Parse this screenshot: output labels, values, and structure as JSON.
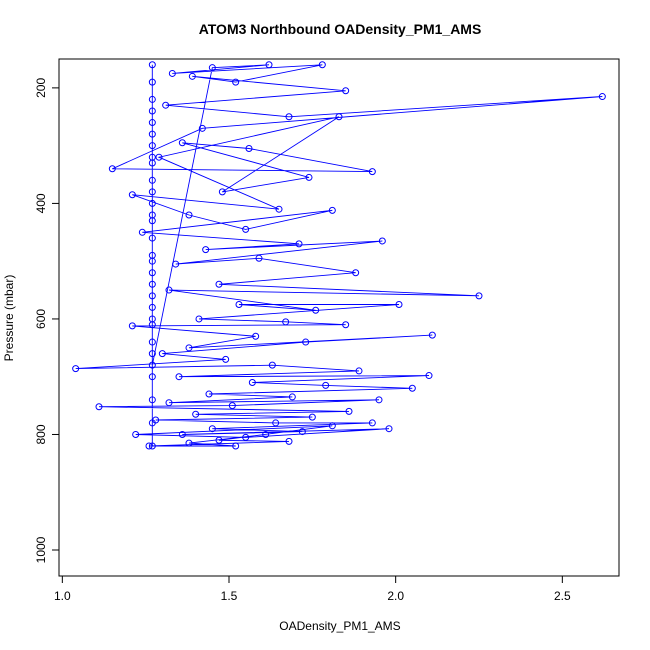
{
  "chart_data": {
    "type": "line",
    "title": "ATOM3 Northbound OADensity_PM1_AMS",
    "xlabel": "OADensity_PM1_AMS",
    "ylabel": "Pressure (mbar)",
    "xlim": [
      0.99,
      2.67
    ],
    "ylim": [
      1045,
      150
    ],
    "y_reversed": true,
    "x_ticks": [
      "1.0",
      "1.5",
      "2.0",
      "2.5"
    ],
    "x_tick_values": [
      1.0,
      1.5,
      2.0,
      2.5
    ],
    "y_ticks": [
      "200",
      "400",
      "600",
      "800",
      "1000"
    ],
    "y_tick_values": [
      200,
      400,
      600,
      800,
      1000
    ],
    "grid": false,
    "series": [
      {
        "color": "#0000ff",
        "marker": "open-circle",
        "x": [
          1.27,
          1.27,
          1.27,
          1.27,
          1.27,
          1.27,
          1.27,
          1.27,
          1.27,
          1.27,
          1.27,
          1.27,
          1.27,
          1.27,
          1.27,
          1.27,
          1.27,
          1.27,
          1.27,
          1.27,
          1.27,
          1.27,
          1.27,
          1.27,
          1.27,
          1.27,
          1.27,
          1.27,
          1.27,
          1.27,
          1.45,
          1.62,
          1.33,
          1.78,
          1.52,
          1.39,
          1.85,
          1.31,
          1.68,
          2.62,
          1.42,
          1.15,
          1.93,
          1.56,
          1.36,
          1.74,
          1.48,
          1.83,
          1.29,
          1.65,
          1.21,
          1.38,
          1.55,
          1.81,
          1.24,
          1.71,
          1.43,
          1.96,
          1.34,
          1.59,
          1.88,
          1.47,
          2.25,
          1.32,
          1.76,
          1.53,
          2.01,
          1.41,
          1.67,
          1.85,
          1.21,
          1.58,
          1.38,
          2.11,
          1.73,
          1.3,
          1.49,
          1.04,
          1.63,
          1.89,
          1.35,
          2.1,
          1.57,
          1.79,
          2.05,
          1.44,
          1.69,
          1.32,
          1.95,
          1.51,
          1.11,
          1.86,
          1.4,
          1.75,
          1.28,
          1.64,
          1.93,
          1.45,
          1.72,
          1.36,
          1.98,
          1.55,
          1.22,
          1.81,
          1.47,
          1.68,
          1.26,
          1.52,
          1.38,
          1.61
        ],
        "y": [
          160,
          220,
          260,
          300,
          330,
          360,
          400,
          430,
          460,
          500,
          520,
          560,
          580,
          610,
          640,
          660,
          700,
          740,
          780,
          820,
          190,
          240,
          280,
          320,
          380,
          420,
          490,
          540,
          600,
          680,
          165,
          160,
          175,
          160,
          190,
          180,
          205,
          230,
          250,
          215,
          270,
          340,
          345,
          305,
          295,
          355,
          380,
          250,
          320,
          410,
          385,
          420,
          445,
          412,
          450,
          470,
          480,
          465,
          505,
          495,
          520,
          540,
          560,
          550,
          585,
          575,
          575,
          600,
          605,
          610,
          612,
          630,
          650,
          628,
          640,
          660,
          670,
          686,
          680,
          690,
          700,
          698,
          710,
          715,
          720,
          730,
          735,
          745,
          740,
          750,
          752,
          760,
          765,
          770,
          775,
          780,
          780,
          790,
          795,
          800,
          790,
          805,
          800,
          785,
          810,
          812,
          820,
          820,
          815,
          800
        ]
      }
    ]
  }
}
